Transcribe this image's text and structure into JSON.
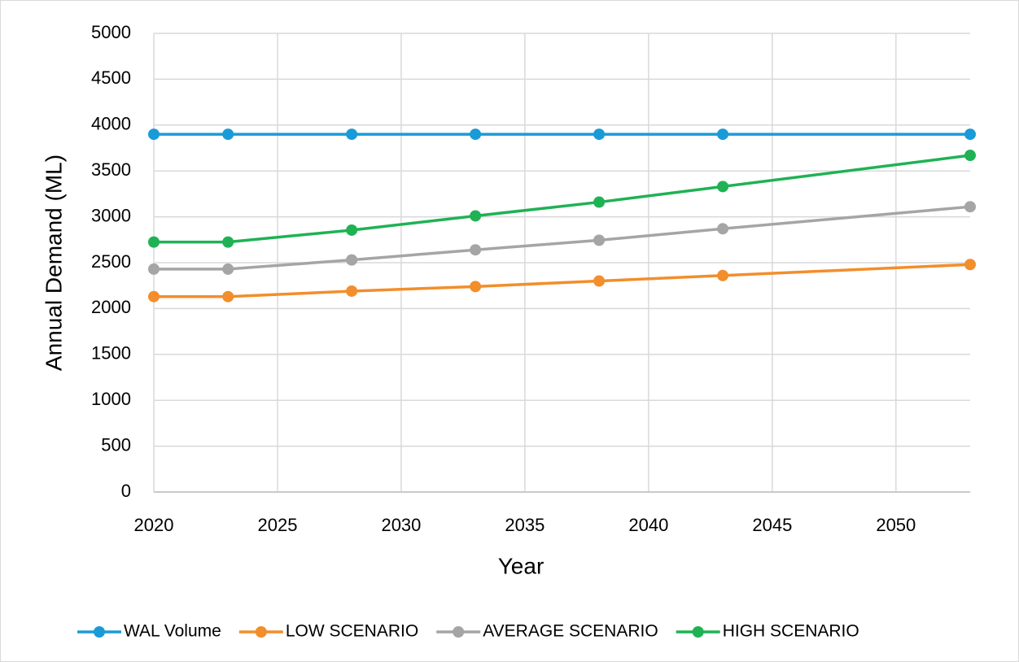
{
  "chart_data": {
    "type": "line",
    "x_label": "Year",
    "y_label": "Annual Demand (ML)",
    "x": [
      2020,
      2023,
      2028,
      2033,
      2038,
      2043,
      2053
    ],
    "series": [
      {
        "name": "WAL Volume",
        "color": "#1a9bd7",
        "values": [
          3900,
          3900,
          3900,
          3900,
          3900,
          3900,
          3900
        ]
      },
      {
        "name": "LOW SCENARIO",
        "color": "#f28e2b",
        "values": [
          2130,
          2130,
          2190,
          2240,
          2300,
          2360,
          2480
        ]
      },
      {
        "name": "AVERAGE SCENARIO",
        "color": "#a5a5a5",
        "values": [
          2430,
          2430,
          2530,
          2640,
          2745,
          2870,
          3110
        ]
      },
      {
        "name": "HIGH SCENARIO",
        "color": "#1fb254",
        "values": [
          2725,
          2725,
          2855,
          3010,
          3160,
          3330,
          3670
        ]
      }
    ],
    "xlim": [
      2020,
      2053
    ],
    "xticks": [
      2020,
      2025,
      2030,
      2035,
      2040,
      2045,
      2050
    ],
    "ylim": [
      0,
      5000
    ],
    "yticks": [
      0,
      500,
      1000,
      1500,
      2000,
      2500,
      3000,
      3500,
      4000,
      4500,
      5000
    ],
    "grid": true,
    "legend": "bottom"
  }
}
